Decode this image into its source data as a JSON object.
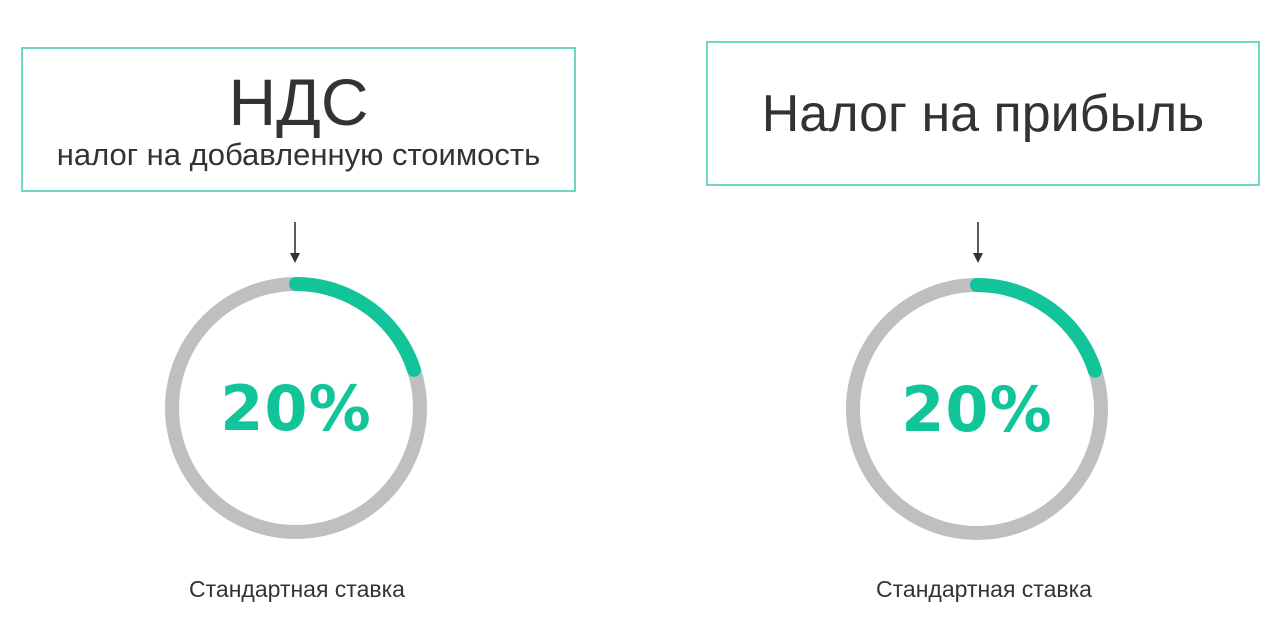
{
  "colors": {
    "accent": "#12c49a",
    "track": "#bfbfbf",
    "border": "#6fd6c3"
  },
  "cards": [
    {
      "title": "НДС",
      "subtitle": "налог на добавленную стоимость",
      "rate_label": "20%",
      "rate_percent": 20,
      "caption": "Стандартная ставка"
    },
    {
      "title": "Налог на прибыль",
      "rate_label": "20%",
      "rate_percent": 20,
      "caption": "Стандартная ставка"
    }
  ]
}
